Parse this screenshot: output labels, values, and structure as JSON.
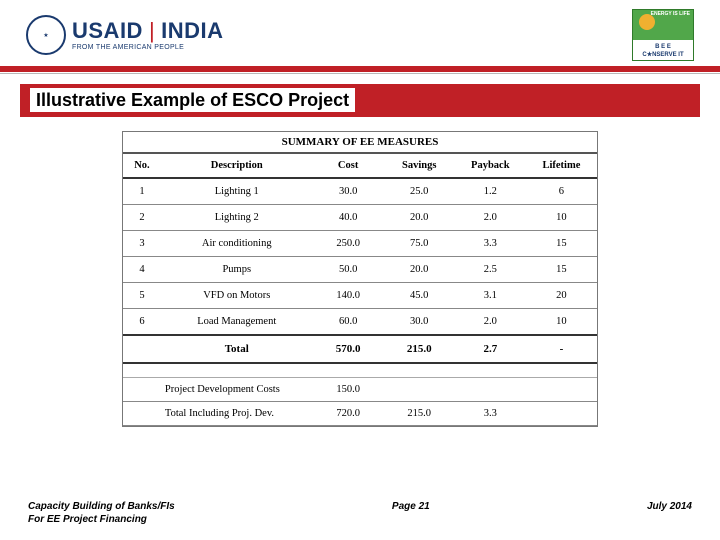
{
  "header": {
    "usaid_main": "USAID",
    "usaid_india": "INDIA",
    "usaid_sub": "FROM THE AMERICAN PEOPLE",
    "bee_top1": "ENERGY IS LIFE",
    "bee_mid": "B E E",
    "bee_bottom": "C★NSERVE IT",
    "colors": {
      "navy": "#1a3a6e",
      "red": "#c02026",
      "green": "#51a74a"
    }
  },
  "title": "Illustrative Example of ESCO Project",
  "table": {
    "summary_label": "SUMMARY OF EE MEASURES",
    "columns": [
      "No.",
      "Description",
      "Cost",
      "Savings",
      "Payback",
      "Lifetime"
    ],
    "rows": [
      {
        "no": "1",
        "desc": "Lighting 1",
        "cost": "30.0",
        "savings": "25.0",
        "payback": "1.2",
        "lifetime": "6"
      },
      {
        "no": "2",
        "desc": "Lighting 2",
        "cost": "40.0",
        "savings": "20.0",
        "payback": "2.0",
        "lifetime": "10"
      },
      {
        "no": "3",
        "desc": "Air conditioning",
        "cost": "250.0",
        "savings": "75.0",
        "payback": "3.3",
        "lifetime": "15"
      },
      {
        "no": "4",
        "desc": "Pumps",
        "cost": "50.0",
        "savings": "20.0",
        "payback": "2.5",
        "lifetime": "15"
      },
      {
        "no": "5",
        "desc": "VFD on Motors",
        "cost": "140.0",
        "savings": "45.0",
        "payback": "3.1",
        "lifetime": "20"
      },
      {
        "no": "6",
        "desc": "Load Management",
        "cost": "60.0",
        "savings": "30.0",
        "payback": "2.0",
        "lifetime": "10"
      }
    ],
    "total": {
      "label": "Total",
      "cost": "570.0",
      "savings": "215.0",
      "payback": "2.7",
      "lifetime": "-"
    },
    "pdc": {
      "label": "Project Development Costs",
      "cost": "150.0"
    },
    "grand": {
      "label": "Total Including Proj. Dev.",
      "cost": "720.0",
      "savings": "215.0",
      "payback": "3.3"
    }
  },
  "footer": {
    "left_line1": "Capacity Building of Banks/FIs",
    "left_line2": "For EE Project Financing",
    "page": "Page 21",
    "date": "July 2014"
  }
}
